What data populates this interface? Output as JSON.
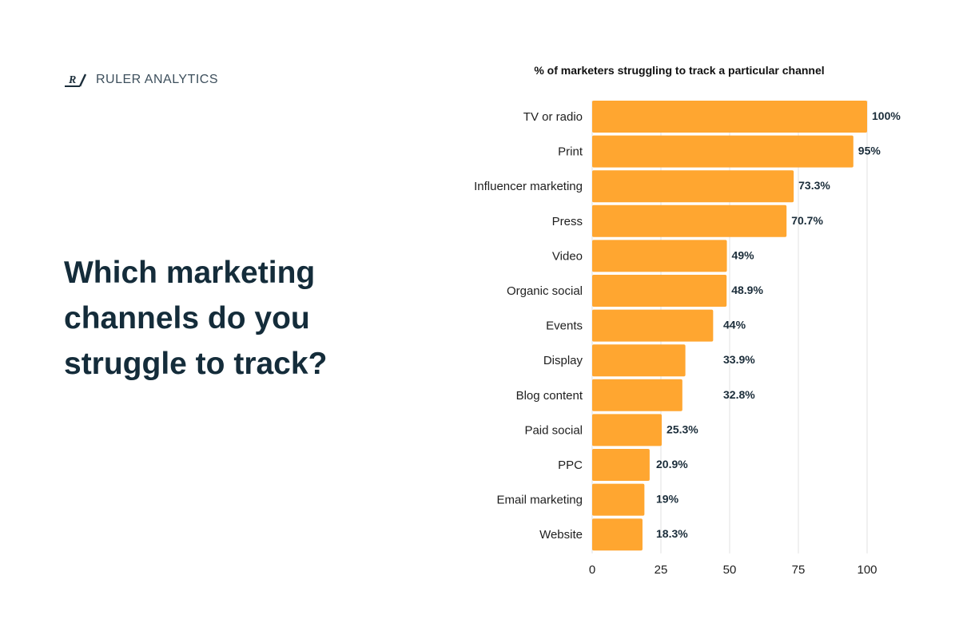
{
  "brand": {
    "name": "RULER ANALYTICS",
    "logo_mark": "R/"
  },
  "headline": "Which marketing channels do you struggle to track?",
  "colors": {
    "bar": "#FFA630",
    "text": "#142C3A",
    "grid": "#E2E2E2"
  },
  "chart_data": {
    "type": "bar",
    "orientation": "horizontal",
    "title": "% of marketers struggling to track a particular channel",
    "categories": [
      "TV or radio",
      "Print",
      "Influencer marketing",
      "Press",
      "Video",
      "Organic social",
      "Events",
      "Display",
      "Blog content",
      "Paid social",
      "PPC",
      "Email marketing",
      "Website"
    ],
    "values": [
      100,
      95,
      73.3,
      70.7,
      49,
      48.9,
      44,
      33.9,
      32.8,
      25.3,
      20.9,
      19,
      18.3
    ],
    "value_labels": [
      "100%",
      "95%",
      "73.3%",
      "70.7%",
      "49%",
      "48.9%",
      "44%",
      "33.9%",
      "32.8%",
      "25.3%",
      "20.9%",
      "19%",
      "18.3%"
    ],
    "xlim": [
      0,
      100
    ],
    "xticks": [
      "0",
      "25",
      "50",
      "75",
      "100"
    ],
    "xlabel": "",
    "ylabel": "",
    "grid": true,
    "legend": "none"
  }
}
